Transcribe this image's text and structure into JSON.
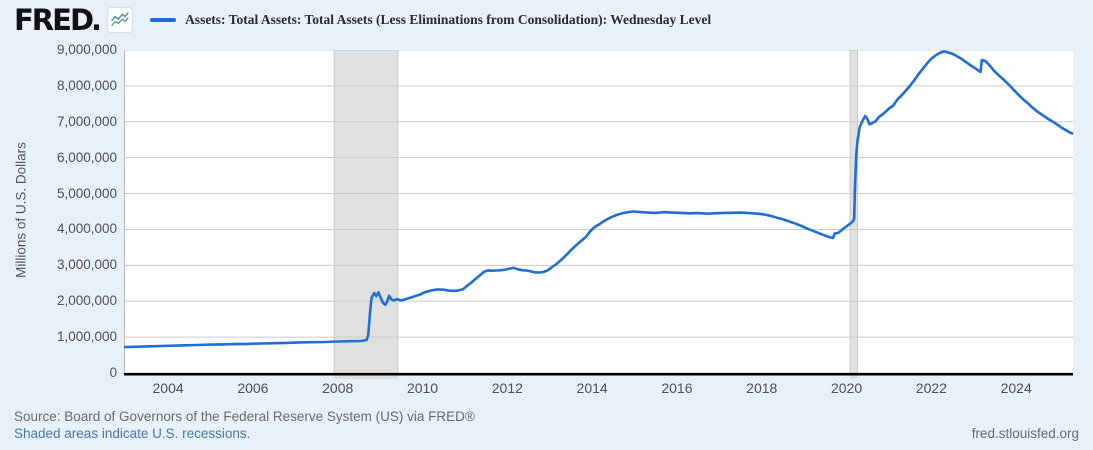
{
  "header": {
    "logo_text": "FRED",
    "logo_dot": ".",
    "legend_label": "Assets: Total Assets: Total Assets (Less Eliminations from Consolidation): Wednesday Level"
  },
  "y_axis": {
    "label": "Millions of U.S. Dollars"
  },
  "footer": {
    "source": "Source: Board of Governors of the Federal Reserve System (US) via FRED®",
    "recession_note": "Shaded areas indicate U.S. recessions.",
    "site": "fred.stlouisfed.org"
  },
  "colors": {
    "background": "#e8f0f8",
    "plot_background": "#ffffff",
    "grid": "#cccccc",
    "axis": "#000000",
    "line": "#1f6ed4",
    "recession_band": "#e0e0e0",
    "band_edge": "#c6cacd",
    "tick_text": "#4f4f4f",
    "link": "#4678af",
    "muted_text": "#6b6b6b"
  },
  "icons": {
    "logo_sparkline": {
      "name": "fred-sparkline-icon",
      "line1_color": "#4a7ebd",
      "line2_color": "#53a07a"
    }
  },
  "chart_data": {
    "type": "line",
    "title": "Assets: Total Assets: Total Assets (Less Eliminations from Consolidation): Wednesday Level",
    "xlabel": "",
    "ylabel": "Millions of U.S. Dollars",
    "unit": "Millions of U.S. Dollars",
    "grid": true,
    "legend_position": "top",
    "ylim": [
      0,
      9000000
    ],
    "xlim": [
      2002.96,
      2025.34
    ],
    "yticks": [
      {
        "value": 0,
        "label": "0"
      },
      {
        "value": 1000000,
        "label": "1,000,000"
      },
      {
        "value": 2000000,
        "label": "2,000,000"
      },
      {
        "value": 3000000,
        "label": "3,000,000"
      },
      {
        "value": 4000000,
        "label": "4,000,000"
      },
      {
        "value": 5000000,
        "label": "5,000,000"
      },
      {
        "value": 6000000,
        "label": "6,000,000"
      },
      {
        "value": 7000000,
        "label": "7,000,000"
      },
      {
        "value": 8000000,
        "label": "8,000,000"
      },
      {
        "value": 9000000,
        "label": "9,000,000"
      }
    ],
    "xticks": [
      2004,
      2006,
      2008,
      2010,
      2012,
      2014,
      2016,
      2018,
      2020,
      2022,
      2024
    ],
    "recessions": [
      [
        2007.917,
        2009.417
      ],
      [
        2020.083,
        2020.26
      ]
    ],
    "series": [
      {
        "name": "Assets: Total Assets: Total Assets (Less Eliminations from Consolidation): Wednesday Level",
        "color": "#1f6ed4",
        "points": [
          [
            2002.96,
            722000
          ],
          [
            2003.2,
            731000
          ],
          [
            2003.5,
            742000
          ],
          [
            2003.8,
            752000
          ],
          [
            2004.1,
            762000
          ],
          [
            2004.4,
            772000
          ],
          [
            2004.7,
            780000
          ],
          [
            2005.0,
            790000
          ],
          [
            2005.3,
            797000
          ],
          [
            2005.6,
            805000
          ],
          [
            2005.9,
            812000
          ],
          [
            2006.2,
            822000
          ],
          [
            2006.5,
            830000
          ],
          [
            2006.8,
            840000
          ],
          [
            2007.1,
            852000
          ],
          [
            2007.4,
            858000
          ],
          [
            2007.7,
            865000
          ],
          [
            2008.0,
            878000
          ],
          [
            2008.3,
            885000
          ],
          [
            2008.55,
            892000
          ],
          [
            2008.68,
            920000
          ],
          [
            2008.72,
            1050000
          ],
          [
            2008.76,
            1650000
          ],
          [
            2008.8,
            2100000
          ],
          [
            2008.86,
            2230000
          ],
          [
            2008.91,
            2140000
          ],
          [
            2008.96,
            2250000
          ],
          [
            2009.02,
            2080000
          ],
          [
            2009.07,
            1950000
          ],
          [
            2009.12,
            1900000
          ],
          [
            2009.17,
            2000000
          ],
          [
            2009.21,
            2150000
          ],
          [
            2009.26,
            2060000
          ],
          [
            2009.32,
            2020000
          ],
          [
            2009.4,
            2060000
          ],
          [
            2009.5,
            2020000
          ],
          [
            2009.6,
            2060000
          ],
          [
            2009.72,
            2100000
          ],
          [
            2009.85,
            2150000
          ],
          [
            2009.95,
            2190000
          ],
          [
            2010.05,
            2250000
          ],
          [
            2010.2,
            2300000
          ],
          [
            2010.35,
            2330000
          ],
          [
            2010.5,
            2320000
          ],
          [
            2010.65,
            2290000
          ],
          [
            2010.8,
            2290000
          ],
          [
            2010.95,
            2330000
          ],
          [
            2011.05,
            2430000
          ],
          [
            2011.15,
            2520000
          ],
          [
            2011.25,
            2620000
          ],
          [
            2011.35,
            2720000
          ],
          [
            2011.45,
            2820000
          ],
          [
            2011.55,
            2860000
          ],
          [
            2011.65,
            2850000
          ],
          [
            2011.75,
            2855000
          ],
          [
            2011.85,
            2865000
          ],
          [
            2011.95,
            2880000
          ],
          [
            2012.05,
            2910000
          ],
          [
            2012.15,
            2930000
          ],
          [
            2012.25,
            2890000
          ],
          [
            2012.35,
            2865000
          ],
          [
            2012.45,
            2855000
          ],
          [
            2012.55,
            2830000
          ],
          [
            2012.65,
            2805000
          ],
          [
            2012.75,
            2800000
          ],
          [
            2012.85,
            2815000
          ],
          [
            2012.95,
            2860000
          ],
          [
            2013.05,
            2950000
          ],
          [
            2013.15,
            3030000
          ],
          [
            2013.25,
            3130000
          ],
          [
            2013.35,
            3240000
          ],
          [
            2013.45,
            3360000
          ],
          [
            2013.55,
            3480000
          ],
          [
            2013.65,
            3590000
          ],
          [
            2013.75,
            3690000
          ],
          [
            2013.85,
            3790000
          ],
          [
            2013.95,
            3940000
          ],
          [
            2014.05,
            4060000
          ],
          [
            2014.15,
            4130000
          ],
          [
            2014.25,
            4210000
          ],
          [
            2014.35,
            4280000
          ],
          [
            2014.45,
            4340000
          ],
          [
            2014.55,
            4390000
          ],
          [
            2014.65,
            4430000
          ],
          [
            2014.75,
            4460000
          ],
          [
            2014.85,
            4480000
          ],
          [
            2014.95,
            4500000
          ],
          [
            2015.1,
            4490000
          ],
          [
            2015.3,
            4470000
          ],
          [
            2015.5,
            4460000
          ],
          [
            2015.7,
            4480000
          ],
          [
            2015.9,
            4470000
          ],
          [
            2016.1,
            4460000
          ],
          [
            2016.3,
            4450000
          ],
          [
            2016.5,
            4455000
          ],
          [
            2016.7,
            4440000
          ],
          [
            2016.9,
            4450000
          ],
          [
            2017.1,
            4460000
          ],
          [
            2017.3,
            4465000
          ],
          [
            2017.5,
            4470000
          ],
          [
            2017.7,
            4455000
          ],
          [
            2017.9,
            4440000
          ],
          [
            2018.05,
            4420000
          ],
          [
            2018.2,
            4380000
          ],
          [
            2018.35,
            4330000
          ],
          [
            2018.5,
            4280000
          ],
          [
            2018.65,
            4220000
          ],
          [
            2018.8,
            4160000
          ],
          [
            2018.95,
            4090000
          ],
          [
            2019.1,
            4010000
          ],
          [
            2019.25,
            3940000
          ],
          [
            2019.4,
            3870000
          ],
          [
            2019.55,
            3800000
          ],
          [
            2019.68,
            3760000
          ],
          [
            2019.72,
            3890000
          ],
          [
            2019.8,
            3900000
          ],
          [
            2019.88,
            3980000
          ],
          [
            2019.98,
            4070000
          ],
          [
            2020.08,
            4160000
          ],
          [
            2020.16,
            4240000
          ],
          [
            2020.18,
            4310000
          ],
          [
            2020.2,
            5200000
          ],
          [
            2020.23,
            6100000
          ],
          [
            2020.26,
            6500000
          ],
          [
            2020.31,
            6850000
          ],
          [
            2020.37,
            7020000
          ],
          [
            2020.44,
            7160000
          ],
          [
            2020.49,
            7080000
          ],
          [
            2020.54,
            6930000
          ],
          [
            2020.6,
            6960000
          ],
          [
            2020.68,
            7010000
          ],
          [
            2020.76,
            7130000
          ],
          [
            2020.84,
            7200000
          ],
          [
            2020.92,
            7280000
          ],
          [
            2021.0,
            7370000
          ],
          [
            2021.1,
            7450000
          ],
          [
            2021.2,
            7620000
          ],
          [
            2021.3,
            7740000
          ],
          [
            2021.4,
            7870000
          ],
          [
            2021.5,
            8010000
          ],
          [
            2021.6,
            8160000
          ],
          [
            2021.7,
            8330000
          ],
          [
            2021.8,
            8480000
          ],
          [
            2021.9,
            8630000
          ],
          [
            2022.0,
            8760000
          ],
          [
            2022.1,
            8850000
          ],
          [
            2022.2,
            8920000
          ],
          [
            2022.3,
            8960000
          ],
          [
            2022.4,
            8930000
          ],
          [
            2022.5,
            8890000
          ],
          [
            2022.6,
            8830000
          ],
          [
            2022.7,
            8760000
          ],
          [
            2022.82,
            8660000
          ],
          [
            2022.94,
            8560000
          ],
          [
            2023.05,
            8480000
          ],
          [
            2023.14,
            8400000
          ],
          [
            2023.16,
            8390000
          ],
          [
            2023.19,
            8720000
          ],
          [
            2023.28,
            8690000
          ],
          [
            2023.38,
            8560000
          ],
          [
            2023.48,
            8420000
          ],
          [
            2023.58,
            8300000
          ],
          [
            2023.68,
            8200000
          ],
          [
            2023.78,
            8090000
          ],
          [
            2023.88,
            7970000
          ],
          [
            2023.98,
            7840000
          ],
          [
            2024.08,
            7720000
          ],
          [
            2024.18,
            7610000
          ],
          [
            2024.28,
            7510000
          ],
          [
            2024.38,
            7400000
          ],
          [
            2024.48,
            7300000
          ],
          [
            2024.58,
            7220000
          ],
          [
            2024.68,
            7140000
          ],
          [
            2024.78,
            7060000
          ],
          [
            2024.88,
            6990000
          ],
          [
            2024.98,
            6910000
          ],
          [
            2025.08,
            6830000
          ],
          [
            2025.18,
            6760000
          ],
          [
            2025.28,
            6690000
          ],
          [
            2025.34,
            6670000
          ]
        ]
      }
    ]
  }
}
